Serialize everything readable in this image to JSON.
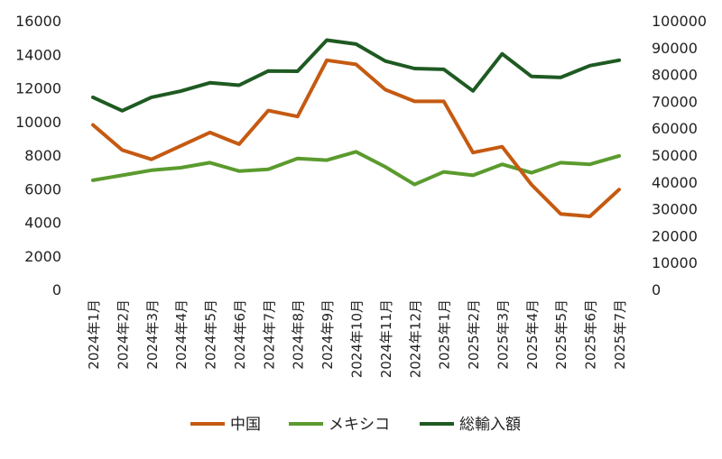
{
  "chart_data": {
    "type": "line",
    "title": "",
    "categories": [
      "2024年1月",
      "2024年2月",
      "2024年3月",
      "2024年4月",
      "2024年5月",
      "2024年6月",
      "2024年7月",
      "2024年8月",
      "2024年9月",
      "2024年10月",
      "2024年11月",
      "2024年12月",
      "2025年1月",
      "2025年2月",
      "2025年3月",
      "2025年4月",
      "2025年5月",
      "2025年6月",
      "2025年7月"
    ],
    "y_left": {
      "range": [
        0,
        16000
      ],
      "ticks": [
        "0",
        "2000",
        "4000",
        "6000",
        "8000",
        "10000",
        "12000",
        "14000",
        "16000"
      ]
    },
    "y_right": {
      "range": [
        0,
        100000
      ],
      "ticks": [
        "0",
        "10000",
        "20000",
        "30000",
        "40000",
        "50000",
        "60000",
        "70000",
        "80000",
        "90000",
        "100000"
      ]
    },
    "grid": false,
    "legend_position": "bottom",
    "series": [
      {
        "name": "中国",
        "axis": "left",
        "color": "#C55A11",
        "values": [
          9800,
          8300,
          7750,
          8550,
          9350,
          8650,
          10650,
          10300,
          13650,
          13400,
          11900,
          11200,
          11200,
          8150,
          8500,
          6250,
          4500,
          4350,
          5950
        ]
      },
      {
        "name": "メキシコ",
        "axis": "left",
        "color": "#5B9B2E",
        "values": [
          6500,
          6800,
          7100,
          7250,
          7550,
          7050,
          7150,
          7800,
          7700,
          8200,
          7300,
          6250,
          7000,
          6800,
          7450,
          6950,
          7550,
          7450,
          7950
        ]
      },
      {
        "name": "総輸入額",
        "axis": "right",
        "color": "#1E5A22",
        "values": [
          71500,
          66500,
          71500,
          73800,
          76900,
          76000,
          81300,
          81200,
          92800,
          91300,
          85000,
          82200,
          81900,
          73900,
          87700,
          79300,
          78900,
          83300,
          85300
        ]
      }
    ]
  }
}
